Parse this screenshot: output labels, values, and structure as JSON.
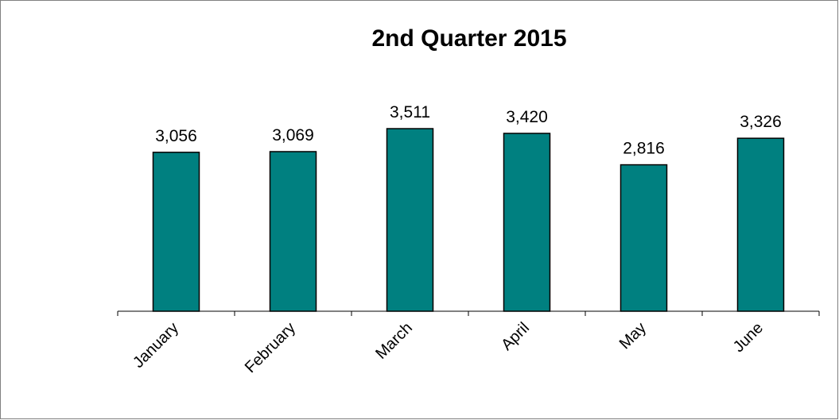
{
  "chart_data": {
    "type": "bar",
    "title": "2nd Quarter 2015",
    "categories": [
      "January",
      "February",
      "March",
      "April",
      "May",
      "June"
    ],
    "values": [
      3056,
      3069,
      3511,
      3420,
      2816,
      3326
    ],
    "value_labels": [
      "3,056",
      "3,069",
      "3,511",
      "3,420",
      "2,816",
      "3,326"
    ],
    "color": "#008080",
    "ylim": [
      0,
      4000
    ]
  }
}
